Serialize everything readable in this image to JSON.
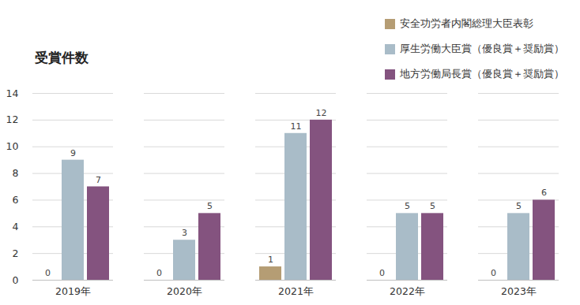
{
  "chart_data": {
    "type": "bar",
    "title": "受賞件数",
    "categories": [
      "2019年",
      "2020年",
      "2021年",
      "2022年",
      "2023年"
    ],
    "series": [
      {
        "name": "安全功労者内閣総理大臣表彰",
        "color": "#b59d74",
        "values": [
          0,
          0,
          1,
          0,
          0
        ]
      },
      {
        "name": "厚生労働大臣賞（優良賞＋奨励賞）",
        "color": "#a9bcc8",
        "values": [
          9,
          3,
          11,
          5,
          5
        ]
      },
      {
        "name": "地方労働局長賞（優良賞＋奨励賞）",
        "color": "#84537f",
        "values": [
          7,
          5,
          12,
          5,
          6
        ]
      }
    ],
    "ylim": [
      0,
      14
    ],
    "yticks": [
      0,
      2,
      4,
      6,
      8,
      10,
      12,
      14
    ],
    "grid": true,
    "data_labels": true,
    "legend": "top-right"
  }
}
